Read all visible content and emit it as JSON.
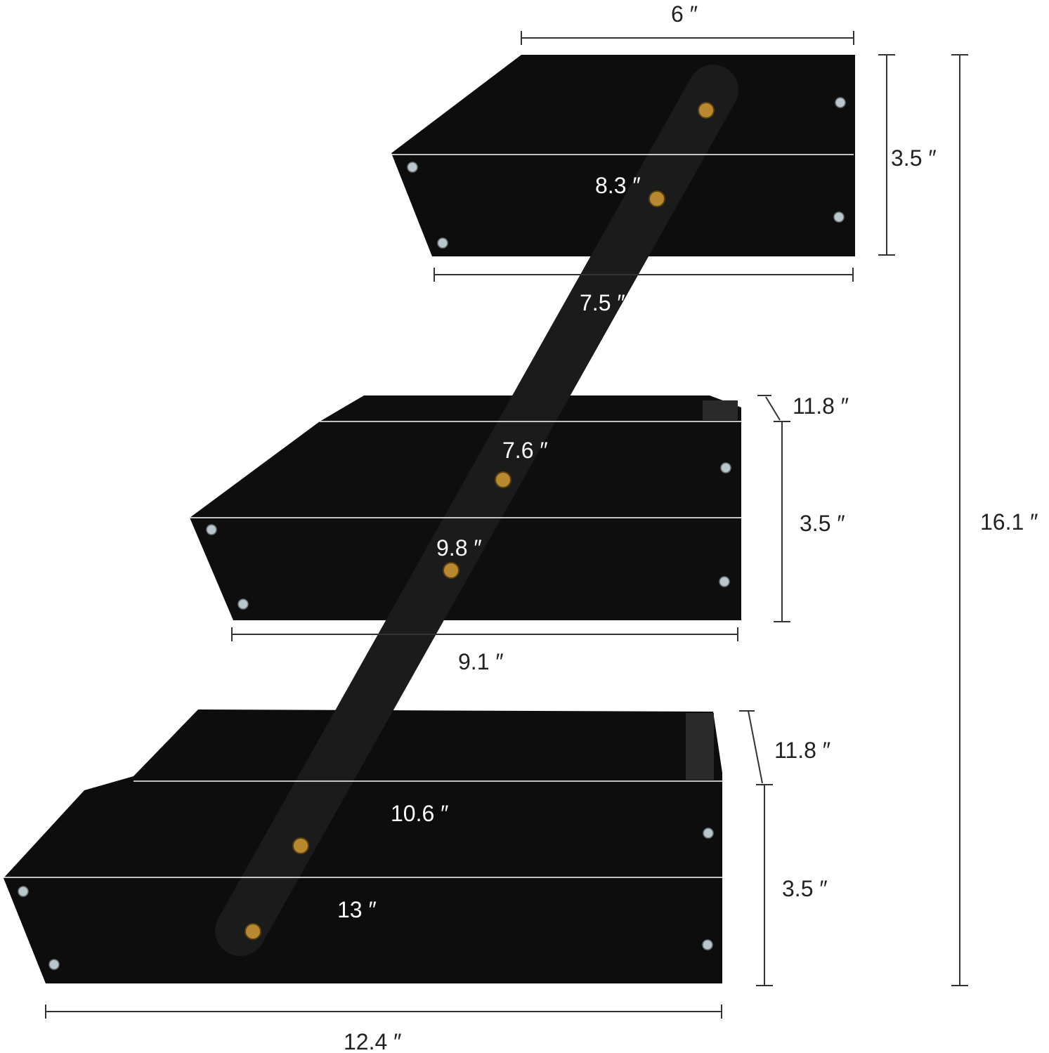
{
  "colors": {
    "shelf": "#0d0d0d",
    "strap": "#1b1b1b",
    "screw_gold": "#b8892e",
    "screw_silver": "#b9c6cc",
    "dimension_line": "#333333",
    "inner_line": "#ffffff"
  },
  "dimensions": {
    "top_back_width": "6 ″",
    "top_height": "3.5 ″",
    "top_front_width": "8.3 ″",
    "top_bottom_width": "7.5 ″",
    "middle_depth": "11.8 ″",
    "middle_back_width": "7.6 ″",
    "middle_height": "3.5 ″",
    "middle_front_width": "9.8 ″",
    "middle_bottom_width": "9.1 ″",
    "bottom_depth": "11.8 ″",
    "bottom_back_width": "10.6 ″",
    "bottom_height": "3.5 ″",
    "bottom_front_width": "13 ″",
    "bottom_bottom_width": "12.4 ″",
    "total_height": "16.1 ″"
  }
}
